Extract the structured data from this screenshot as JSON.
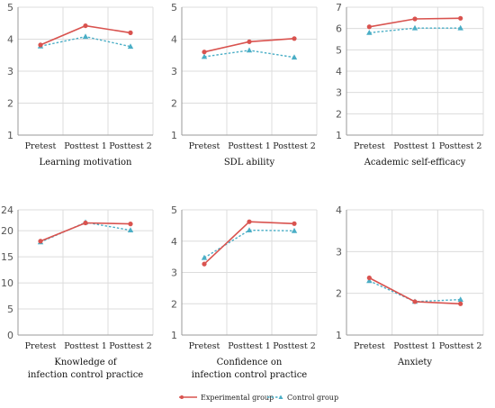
{
  "colors": {
    "experimental": "#d9534f",
    "control": "#4aaec6",
    "grid": "#dcdcdc",
    "axis": "#9a9a9a"
  },
  "legend": {
    "experimental": "Experimental group",
    "control": "Control group",
    "placement": "bottom-center"
  },
  "chart_data": [
    {
      "type": "line",
      "title": [
        "Learning motivation"
      ],
      "categories": [
        "Pretest",
        "Posttest 1",
        "Posttest 2"
      ],
      "ylim": [
        1,
        5
      ],
      "yticks": [
        1,
        2,
        3,
        4,
        5
      ],
      "grid": true,
      "series": [
        {
          "name": "Experimental group",
          "values": [
            3.82,
            4.42,
            4.2
          ]
        },
        {
          "name": "Control group",
          "values": [
            3.78,
            4.08,
            3.77
          ]
        }
      ]
    },
    {
      "type": "line",
      "title": [
        "SDL ability"
      ],
      "categories": [
        "Pretest",
        "Posttest 1",
        "Posttest 2"
      ],
      "ylim": [
        1,
        5
      ],
      "yticks": [
        1,
        2,
        3,
        4,
        5
      ],
      "grid": true,
      "series": [
        {
          "name": "Experimental group",
          "values": [
            3.6,
            3.92,
            4.02
          ]
        },
        {
          "name": "Control group",
          "values": [
            3.45,
            3.65,
            3.43
          ]
        }
      ]
    },
    {
      "type": "line",
      "title": [
        "Academic self-efficacy"
      ],
      "categories": [
        "Pretest",
        "Posttest 1",
        "Posttest 2"
      ],
      "ylim": [
        1,
        7
      ],
      "yticks": [
        1,
        2,
        3,
        4,
        5,
        6,
        7
      ],
      "grid": true,
      "series": [
        {
          "name": "Experimental group",
          "values": [
            6.08,
            6.45,
            6.48
          ]
        },
        {
          "name": "Control group",
          "values": [
            5.8,
            6.02,
            6.02
          ]
        }
      ]
    },
    {
      "type": "line",
      "title": [
        "Knowledge of",
        "infection control practice"
      ],
      "categories": [
        "Pretest",
        "Posttest 1",
        "Posttest 2"
      ],
      "ylim": [
        0,
        24
      ],
      "yticks": [
        0,
        5,
        10,
        15,
        20,
        24
      ],
      "grid": true,
      "series": [
        {
          "name": "Experimental group",
          "values": [
            18.0,
            21.5,
            21.3
          ]
        },
        {
          "name": "Control group",
          "values": [
            17.8,
            21.6,
            20.1
          ]
        }
      ]
    },
    {
      "type": "line",
      "title": [
        "Confidence on",
        "infection control practice"
      ],
      "categories": [
        "Pretest",
        "Posttest 1",
        "Posttest 2"
      ],
      "ylim": [
        1,
        5
      ],
      "yticks": [
        1,
        2,
        3,
        4,
        5
      ],
      "grid": true,
      "series": [
        {
          "name": "Experimental group",
          "values": [
            3.27,
            4.62,
            4.56
          ]
        },
        {
          "name": "Control group",
          "values": [
            3.47,
            4.35,
            4.33
          ]
        }
      ]
    },
    {
      "type": "line",
      "title": [
        "Anxiety"
      ],
      "categories": [
        "Pretest",
        "Posttest 1",
        "Posttest 2"
      ],
      "ylim": [
        1,
        4
      ],
      "yticks": [
        1,
        2,
        3,
        4
      ],
      "grid": true,
      "series": [
        {
          "name": "Experimental group",
          "values": [
            2.37,
            1.8,
            1.75
          ]
        },
        {
          "name": "Control group",
          "values": [
            2.3,
            1.8,
            1.85
          ]
        }
      ]
    }
  ]
}
